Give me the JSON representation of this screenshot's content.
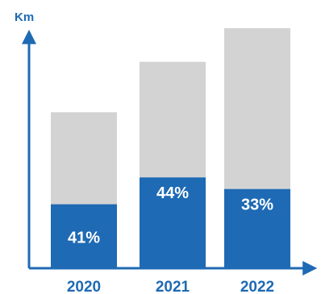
{
  "chart_data": {
    "type": "bar",
    "stacked": true,
    "ylabel": "Km",
    "categories": [
      "2020",
      "2021",
      "2022"
    ],
    "series": [
      {
        "values": [
          41,
          44,
          33
        ],
        "labels": [
          "41%",
          "44%",
          "33%"
        ],
        "color": "#1e6ab4"
      },
      {
        "values": [
          59,
          56,
          67
        ],
        "color": "#d3d3d3"
      }
    ],
    "totals_relative": [
      0.65,
      0.86,
      1.0
    ],
    "grid": false,
    "legend": "none"
  },
  "colors": {
    "axis": "#1e6ab4",
    "accent": "#1e6ab4",
    "remainder": "#d3d3d3"
  }
}
